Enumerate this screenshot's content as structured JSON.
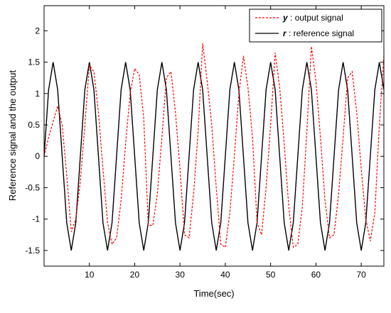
{
  "chart_data": {
    "type": "line",
    "title": "",
    "xlabel": "Time(sec)",
    "ylabel": "Reference signal and the output",
    "xlim": [
      0,
      75
    ],
    "ylim": [
      -1.75,
      2.4
    ],
    "xticks": [
      10,
      20,
      30,
      40,
      50,
      60,
      70
    ],
    "yticks": [
      -1.5,
      -1,
      -0.5,
      0,
      0.5,
      1,
      1.5,
      2
    ],
    "xtick_labels": [
      "10",
      "20",
      "30",
      "40",
      "50",
      "60",
      "70"
    ],
    "ytick_labels": [
      "-1.5",
      "-1",
      "-0.5",
      "0",
      "0.5",
      "1",
      "1.5",
      "2"
    ],
    "grid": false,
    "legend_position": "top-right",
    "series": [
      {
        "key": "y",
        "var": "y",
        "name": " : output signal",
        "color": "#ff0000",
        "style": "dashed",
        "x": [
          0,
          1,
          2,
          3,
          4,
          5,
          6,
          7,
          8,
          9,
          10,
          11,
          12,
          13,
          14,
          15,
          16,
          17,
          18,
          19,
          20,
          21,
          22,
          23,
          24,
          25,
          26,
          27,
          28,
          29,
          30,
          31,
          32,
          33,
          34,
          35,
          36,
          37,
          38,
          39,
          40,
          41,
          42,
          43,
          44,
          45,
          46,
          47,
          48,
          49,
          50,
          51,
          52,
          53,
          54,
          55,
          56,
          57,
          58,
          59,
          60,
          61,
          62,
          63,
          64,
          65,
          66,
          67,
          68,
          69,
          70,
          71,
          72,
          73,
          74,
          75
        ],
        "y": [
          0,
          0.3,
          0.55,
          0.8,
          0.5,
          -0.3,
          -1.2,
          -1.0,
          -0.4,
          0.5,
          1.45,
          1.35,
          0.7,
          -0.2,
          -1.05,
          -1.4,
          -1.3,
          -0.7,
          0.2,
          1.0,
          1.4,
          1.3,
          0.6,
          -1.1,
          -1.1,
          -0.6,
          0.3,
          1.25,
          1.35,
          0.7,
          -0.2,
          -1.25,
          -1.3,
          -0.6,
          0.4,
          1.8,
          1.2,
          0.5,
          -0.5,
          -1.4,
          -1.45,
          -0.9,
          0.0,
          1.0,
          1.6,
          1.1,
          0.3,
          -1.05,
          -1.25,
          -0.5,
          0.5,
          1.65,
          1.1,
          0.2,
          -0.8,
          -1.45,
          -1.4,
          -0.8,
          0.4,
          1.75,
          1.2,
          0.3,
          -0.7,
          -1.3,
          -1.25,
          -0.6,
          0.3,
          1.25,
          1.35,
          0.7,
          -0.2,
          -1.0,
          -1.35,
          -0.9,
          0.5,
          1.6
        ]
      },
      {
        "key": "r",
        "var": "r",
        "name": " : reference signal",
        "color": "#000000",
        "style": "solid",
        "x": [
          0,
          1,
          2,
          3,
          4,
          5,
          6,
          7,
          8,
          9,
          10,
          11,
          12,
          13,
          14,
          15,
          16,
          17,
          18,
          19,
          20,
          21,
          22,
          23,
          24,
          25,
          26,
          27,
          28,
          29,
          30,
          31,
          32,
          33,
          34,
          35,
          36,
          37,
          38,
          39,
          40,
          41,
          42,
          43,
          44,
          45,
          46,
          47,
          48,
          49,
          50,
          51,
          52,
          53,
          54,
          55,
          56,
          57,
          58,
          59,
          60,
          61,
          62,
          63,
          64,
          65,
          66,
          67,
          68,
          69,
          70,
          71,
          72,
          73,
          74,
          75
        ],
        "y": [
          0,
          1.06,
          1.5,
          1.06,
          0,
          -1.06,
          -1.5,
          -1.06,
          0,
          1.06,
          1.5,
          1.06,
          0,
          -1.06,
          -1.5,
          -1.06,
          0,
          1.06,
          1.5,
          1.06,
          0,
          -1.06,
          -1.5,
          -1.06,
          0,
          1.06,
          1.5,
          1.06,
          0,
          -1.06,
          -1.5,
          -1.06,
          0,
          1.06,
          1.5,
          1.06,
          0,
          -1.06,
          -1.5,
          -1.06,
          0,
          1.06,
          1.5,
          1.06,
          0,
          -1.06,
          -1.5,
          -1.06,
          0,
          1.06,
          1.5,
          1.06,
          0,
          -1.06,
          -1.5,
          -1.06,
          0,
          1.06,
          1.5,
          1.06,
          0,
          -1.06,
          -1.5,
          -1.06,
          0,
          1.06,
          1.5,
          1.06,
          0,
          -1.06,
          -1.5,
          -1.06,
          0,
          1.06,
          1.5,
          1.06
        ]
      }
    ]
  }
}
